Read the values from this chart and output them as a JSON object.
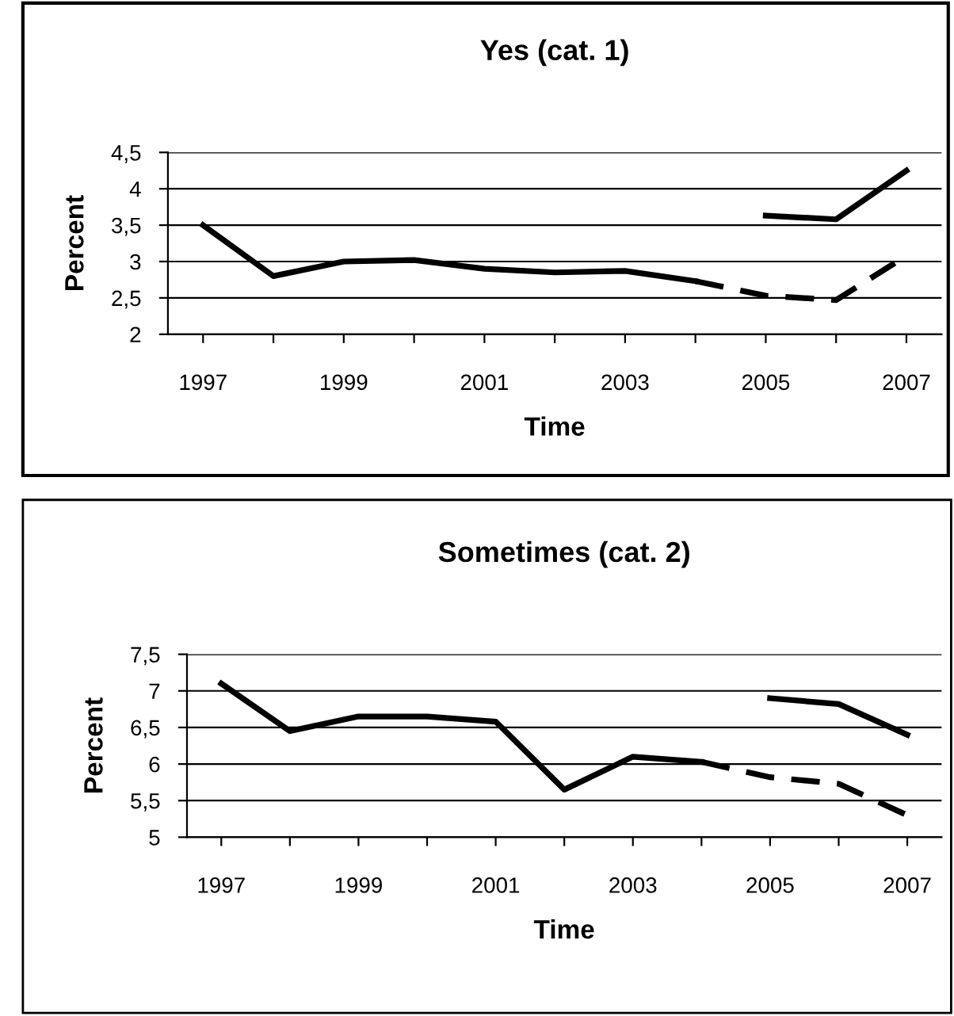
{
  "chart_data": [
    {
      "type": "line",
      "title": "Yes (cat. 1)",
      "xlabel": "Time",
      "ylabel": "Percent",
      "categories": [
        "1997",
        null,
        "1999",
        null,
        "2001",
        null,
        "2003",
        null,
        "2005",
        null,
        "2007"
      ],
      "series": [
        {
          "color": "#000000",
          "line_style": "solid",
          "values": [
            3.5,
            2.8,
            3.0,
            3.02,
            2.9,
            2.85,
            2.87,
            2.73,
            null,
            null,
            null
          ]
        },
        {
          "color": "#000000",
          "line_style": "dashed",
          "values": [
            null,
            null,
            null,
            null,
            null,
            null,
            null,
            2.73,
            2.53,
            2.47,
            3.08
          ]
        },
        {
          "color": "#000000",
          "line_style": "solid",
          "values": [
            null,
            null,
            null,
            null,
            null,
            null,
            null,
            null,
            3.63,
            3.58,
            4.25
          ]
        }
      ],
      "ylim": [
        2,
        4.5
      ],
      "yticks": [
        2,
        {
          "value": 2.5,
          "label": "2,5"
        },
        3,
        {
          "value": 3.5,
          "label": "3,5"
        },
        4,
        {
          "value": 4.5,
          "label": "4,5"
        }
      ],
      "grid": "y",
      "legend": false,
      "marker": "none"
    },
    {
      "type": "line",
      "title": "Sometimes (cat. 2)",
      "xlabel": "Time",
      "ylabel": "Percent",
      "categories": [
        "1997",
        null,
        "1999",
        null,
        "2001",
        null,
        "2003",
        null,
        "2005",
        null,
        "2007"
      ],
      "series": [
        {
          "color": "#000000",
          "line_style": "solid",
          "values": [
            7.1,
            6.45,
            6.65,
            6.65,
            6.58,
            5.65,
            6.1,
            6.03,
            null,
            null,
            null
          ]
        },
        {
          "color": "#000000",
          "line_style": "dashed",
          "values": [
            null,
            null,
            null,
            null,
            null,
            null,
            null,
            6.03,
            5.82,
            5.73,
            5.3
          ]
        },
        {
          "color": "#000000",
          "line_style": "solid",
          "values": [
            null,
            null,
            null,
            null,
            null,
            null,
            null,
            null,
            6.9,
            6.82,
            6.4
          ]
        }
      ],
      "ylim": [
        5,
        7.5
      ],
      "yticks": [
        5,
        {
          "value": 5.5,
          "label": "5,5"
        },
        6,
        {
          "value": 6.5,
          "label": "6,5"
        },
        7,
        {
          "value": 7.5,
          "label": "7,5"
        }
      ],
      "grid": "y",
      "legend": false,
      "marker": "none"
    }
  ]
}
